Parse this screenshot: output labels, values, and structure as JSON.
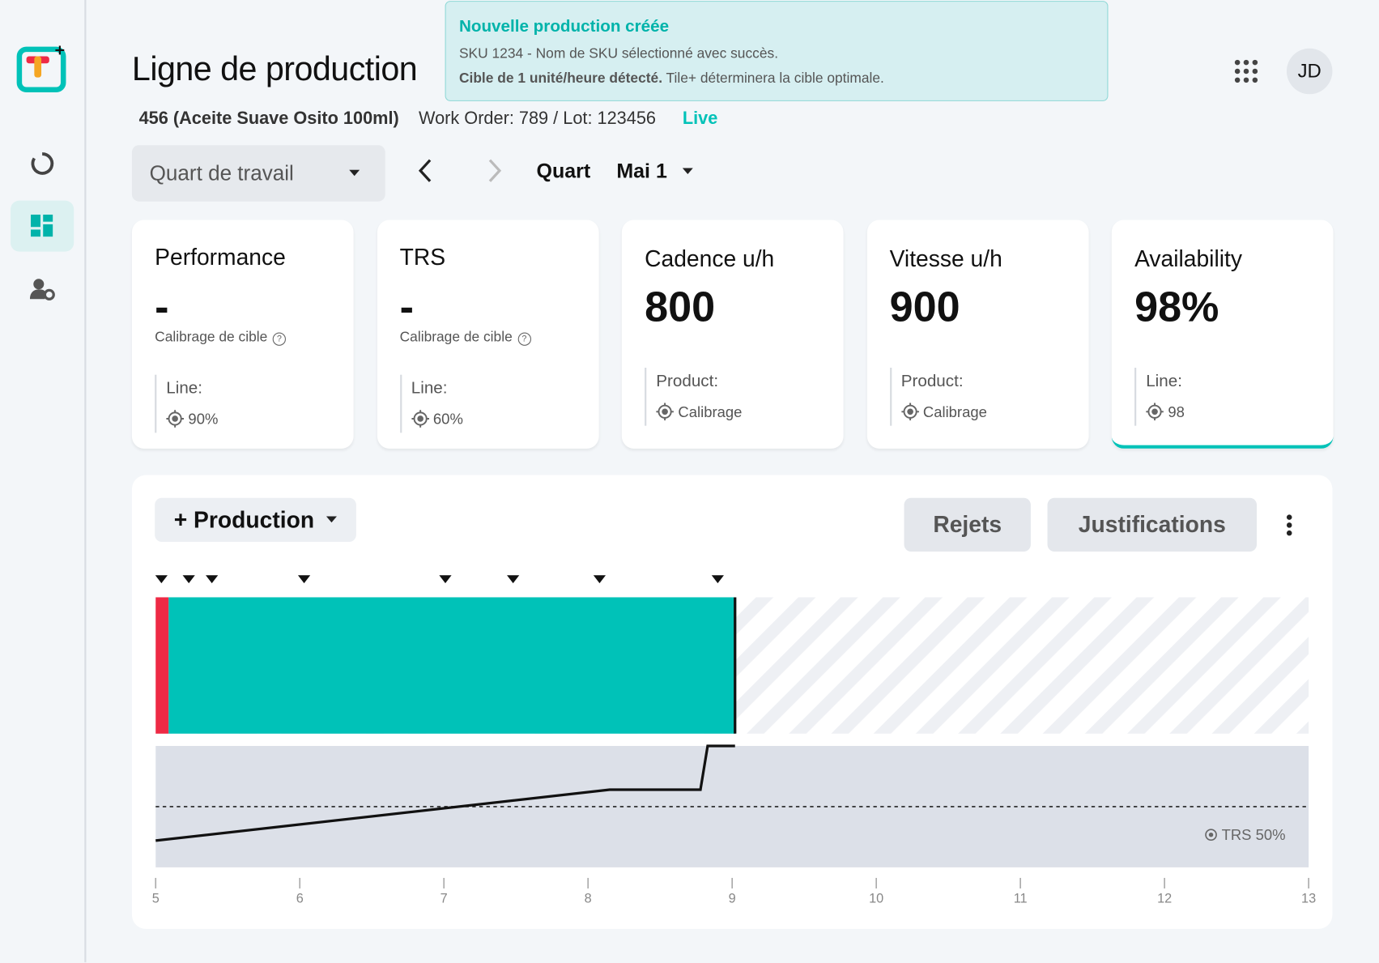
{
  "header": {
    "title": "Ligne de production",
    "product": "456 (Aceite Suave Osito 100ml)",
    "order": "Work Order: 789 / Lot: 123456",
    "status": "Live",
    "avatar": "JD"
  },
  "toast": {
    "title": "Nouvelle production créée",
    "message": "SKU 1234 - Nom de SKU sélectionné avec succès.",
    "detail_bold": "Cible de 1 unité/heure détecté.",
    "detail": "Tile+ déterminera la cible optimale."
  },
  "controls": {
    "shift": "Quart de travail",
    "period": "Quart",
    "date": "Mai 1"
  },
  "cards": [
    {
      "title": "Performance",
      "value": "-",
      "note": "Calibrage de cible",
      "scope": "Line:",
      "target": "90%",
      "highlight": false
    },
    {
      "title": "TRS",
      "value": "-",
      "note": "Calibrage de cible",
      "scope": "Line:",
      "target": "60%",
      "highlight": false
    },
    {
      "title": "Cadence u/h",
      "value": "800",
      "scope": "Product:",
      "target": "Calibrage",
      "highlight": false
    },
    {
      "title": "Vitesse u/h",
      "value": "900",
      "scope": "Product:",
      "target": "Calibrage",
      "highlight": false
    },
    {
      "title": "Availability",
      "value": "98%",
      "scope": "Line:",
      "target": "98",
      "highlight": true
    }
  ],
  "production": {
    "menu": "+ Production",
    "buttons": [
      "Rejets",
      "Justifications"
    ],
    "chart": {
      "xlim": [
        5,
        13
      ],
      "xticks": [
        5,
        6,
        7,
        8,
        9,
        10,
        11,
        12,
        13
      ],
      "segments": [
        {
          "start": 5,
          "end": 5.09,
          "color": "#ee2a45"
        },
        {
          "start": 5.09,
          "end": 9.02,
          "color": "#00c2b8"
        }
      ],
      "events": [
        5.04,
        5.23,
        5.39,
        6.03,
        7.01,
        7.48,
        8.08,
        8.9
      ],
      "ylim": [
        0,
        100
      ],
      "trs": {
        "x": [
          5,
          8.15,
          8.78,
          8.83,
          9.02
        ],
        "y": [
          22,
          64,
          64,
          100,
          100
        ]
      },
      "target": 50,
      "target_label": "TRS 50%"
    }
  }
}
